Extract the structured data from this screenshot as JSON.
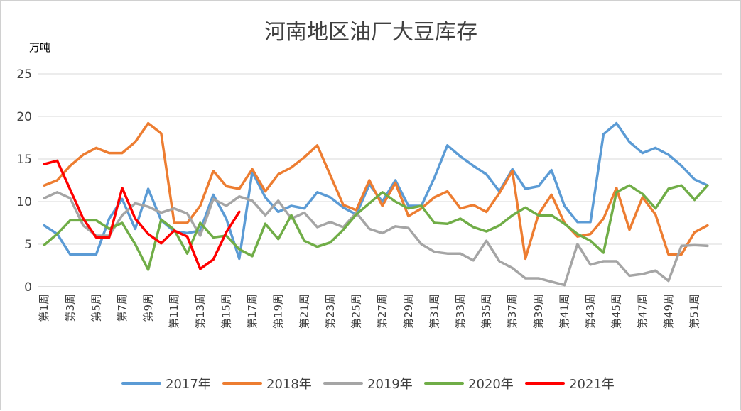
{
  "chart_data": {
    "type": "line",
    "title": "河南地区油厂大豆库存",
    "unit_label": "万吨",
    "ylim": [
      0,
      25
    ],
    "yticks": [
      0,
      5,
      10,
      15,
      20,
      25
    ],
    "grid": true,
    "legend_position": "bottom",
    "categories": [
      "第1周",
      "第2周",
      "第3周",
      "第4周",
      "第5周",
      "第6周",
      "第7周",
      "第8周",
      "第9周",
      "第10周",
      "第11周",
      "第12周",
      "第13周",
      "第14周",
      "第15周",
      "第16周",
      "第17周",
      "第18周",
      "第19周",
      "第20周",
      "第21周",
      "第22周",
      "第23周",
      "第24周",
      "第25周",
      "第26周",
      "第27周",
      "第28周",
      "第29周",
      "第30周",
      "第31周",
      "第32周",
      "第33周",
      "第34周",
      "第35周",
      "第36周",
      "第37周",
      "第38周",
      "第39周",
      "第40周",
      "第41周",
      "第42周",
      "第43周",
      "第44周",
      "第45周",
      "第46周",
      "第47周",
      "第48周",
      "第49周",
      "第50周",
      "第51周",
      "第52周",
      "第53周"
    ],
    "xtick_labels": [
      "第1周",
      "第3周",
      "第5周",
      "第7周",
      "第9周",
      "第11周",
      "第13周",
      "第15周",
      "第17周",
      "第19周",
      "第21周",
      "第23周",
      "第25周",
      "第27周",
      "第29周",
      "第31周",
      "第33周",
      "第35周",
      "第37周",
      "第39周",
      "第41周",
      "第43周",
      "第45周",
      "第47周",
      "第49周",
      "第51周"
    ],
    "series": [
      {
        "name": "2017年",
        "color": "#5b9bd5",
        "values": [
          7.2,
          6.2,
          3.8,
          3.8,
          3.8,
          8.0,
          10.3,
          6.8,
          11.5,
          7.8,
          6.5,
          6.3,
          6.6,
          10.8,
          8.0,
          3.3,
          13.5,
          10.5,
          8.8,
          9.5,
          9.2,
          11.1,
          10.5,
          9.3,
          8.5,
          12.0,
          10.0,
          12.5,
          9.5,
          9.5,
          12.8,
          16.6,
          15.3,
          14.2,
          13.2,
          11.2,
          13.8,
          11.5,
          11.8,
          13.7,
          9.5,
          7.6,
          7.6,
          17.9,
          19.2,
          17.0,
          15.7,
          16.3,
          15.5,
          14.2,
          12.6,
          11.9,
          null
        ]
      },
      {
        "name": "2018年",
        "color": "#ed7d31",
        "values": [
          11.9,
          12.5,
          14.2,
          15.5,
          16.3,
          15.7,
          15.7,
          17.0,
          19.2,
          18.0,
          7.5,
          7.5,
          9.5,
          13.6,
          11.8,
          11.5,
          13.8,
          11.2,
          13.2,
          14.0,
          15.2,
          16.6,
          13.1,
          9.6,
          9.0,
          12.5,
          9.5,
          12.2,
          8.3,
          9.2,
          10.5,
          11.2,
          9.2,
          9.6,
          8.8,
          11.0,
          13.6,
          3.3,
          8.5,
          10.8,
          7.5,
          5.9,
          6.2,
          8.0,
          11.6,
          6.7,
          10.5,
          8.5,
          3.8,
          3.8,
          6.4,
          7.2,
          null
        ]
      },
      {
        "name": "2019年",
        "color": "#a5a5a5",
        "values": [
          10.4,
          11.1,
          10.4,
          7.2,
          6.0,
          6.0,
          8.4,
          9.8,
          9.4,
          8.7,
          9.2,
          8.6,
          6.0,
          10.3,
          9.5,
          10.6,
          10.1,
          8.4,
          10.1,
          8.0,
          8.7,
          7.0,
          7.6,
          7.0,
          8.7,
          6.8,
          6.3,
          7.1,
          6.9,
          5.0,
          4.1,
          3.9,
          3.9,
          3.1,
          5.4,
          3.0,
          2.2,
          1.0,
          1.0,
          0.6,
          0.2,
          5.0,
          2.6,
          3.0,
          3.0,
          1.3,
          1.5,
          1.9,
          0.7,
          4.8,
          4.9,
          4.8,
          null
        ]
      },
      {
        "name": "2020年",
        "color": "#70ad47",
        "values": [
          4.9,
          6.2,
          7.8,
          7.8,
          7.8,
          6.8,
          7.5,
          5.0,
          2.0,
          7.9,
          6.7,
          3.9,
          7.5,
          5.8,
          6.0,
          4.4,
          3.6,
          7.4,
          5.6,
          8.4,
          5.4,
          4.7,
          5.2,
          6.7,
          8.5,
          9.8,
          11.1,
          10.0,
          9.2,
          9.5,
          7.5,
          7.4,
          8.0,
          7.0,
          6.5,
          7.2,
          8.4,
          9.3,
          8.4,
          8.4,
          7.4,
          6.2,
          5.4,
          4.0,
          11.1,
          11.9,
          10.9,
          9.2,
          11.5,
          11.9,
          10.2,
          11.9,
          null
        ]
      },
      {
        "name": "2021年",
        "color": "#ff0000",
        "values": [
          14.4,
          14.8,
          11.4,
          8.0,
          5.8,
          5.8,
          11.6,
          8.0,
          6.2,
          5.1,
          6.6,
          5.9,
          2.1,
          3.2,
          6.4,
          8.8,
          null,
          null,
          null,
          null,
          null,
          null,
          null,
          null,
          null,
          null,
          null,
          null,
          null,
          null,
          null,
          null,
          null,
          null,
          null,
          null,
          null,
          null,
          null,
          null,
          null,
          null,
          null,
          null,
          null,
          null,
          null,
          null,
          null,
          null,
          null,
          null,
          null
        ]
      }
    ]
  }
}
